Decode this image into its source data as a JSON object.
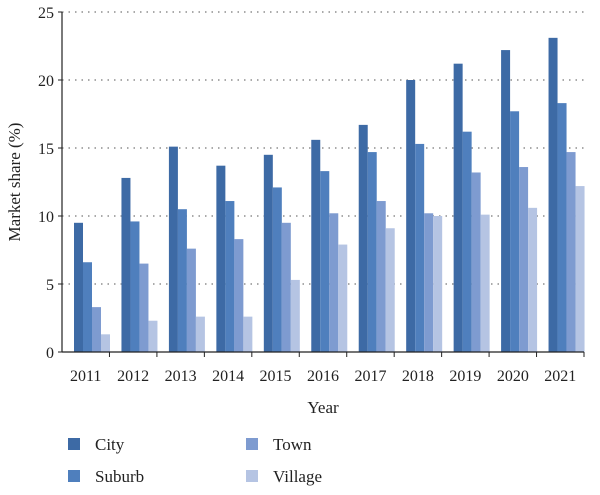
{
  "chart_data": {
    "type": "bar",
    "title": "",
    "xlabel": "Year",
    "ylabel": "Market share (%)",
    "ylim": [
      0,
      25
    ],
    "yticks": [
      0,
      5,
      10,
      15,
      20,
      25
    ],
    "grid": "horizontal dotted",
    "legend_position": "bottom",
    "categories": [
      "2011",
      "2012",
      "2013",
      "2014",
      "2015",
      "2016",
      "2017",
      "2018",
      "2019",
      "2020",
      "2021"
    ],
    "series": [
      {
        "name": "City",
        "color": "#3d6aa5",
        "values": [
          9.5,
          12.8,
          15.1,
          13.7,
          14.5,
          15.6,
          16.7,
          20.0,
          21.2,
          22.2,
          23.1
        ]
      },
      {
        "name": "Suburb",
        "color": "#4f7fbd",
        "values": [
          6.6,
          9.6,
          10.5,
          11.1,
          12.1,
          13.3,
          14.7,
          15.3,
          16.2,
          17.7,
          18.3
        ]
      },
      {
        "name": "Town",
        "color": "#7e9bd0",
        "values": [
          3.3,
          6.5,
          7.6,
          8.3,
          9.5,
          10.2,
          11.1,
          10.2,
          13.2,
          13.6,
          14.7
        ]
      },
      {
        "name": "Village",
        "color": "#b5c4e3",
        "values": [
          1.3,
          2.3,
          2.6,
          2.6,
          5.3,
          7.9,
          9.1,
          10.0,
          10.1,
          10.6,
          12.2
        ]
      }
    ]
  }
}
